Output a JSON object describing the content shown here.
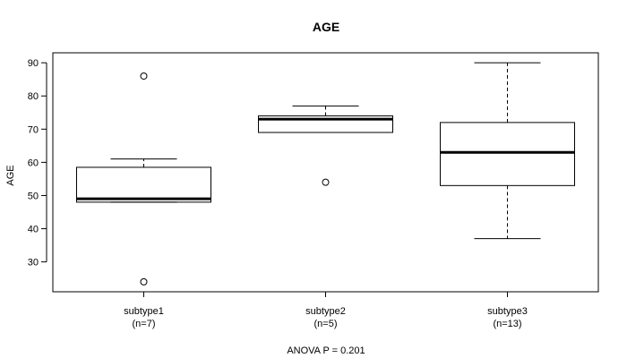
{
  "chart_data": {
    "type": "box",
    "title": "AGE",
    "ylabel": "AGE",
    "xlabel": "ANOVA P = 0.201",
    "ylim": [
      21,
      93
    ],
    "yticks": [
      30,
      40,
      50,
      60,
      70,
      80,
      90
    ],
    "categories": [
      {
        "name": "subtype1",
        "n_label": "(n=7)"
      },
      {
        "name": "subtype2",
        "n_label": "(n=5)"
      },
      {
        "name": "subtype3",
        "n_label": "(n=13)"
      }
    ],
    "boxes": [
      {
        "category": "subtype1",
        "whisker_low": 48,
        "q1": 48,
        "median": 49,
        "q3": 58.5,
        "whisker_high": 61,
        "outliers": [
          86,
          24
        ]
      },
      {
        "category": "subtype2",
        "whisker_low": 69,
        "q1": 69,
        "median": 73,
        "q3": 74,
        "whisker_high": 77,
        "outliers": [
          54
        ]
      },
      {
        "category": "subtype3",
        "whisker_low": 37,
        "q1": 53,
        "median": 63,
        "q3": 72,
        "whisker_high": 90,
        "outliers": []
      }
    ],
    "grid": false,
    "legend": "none"
  }
}
